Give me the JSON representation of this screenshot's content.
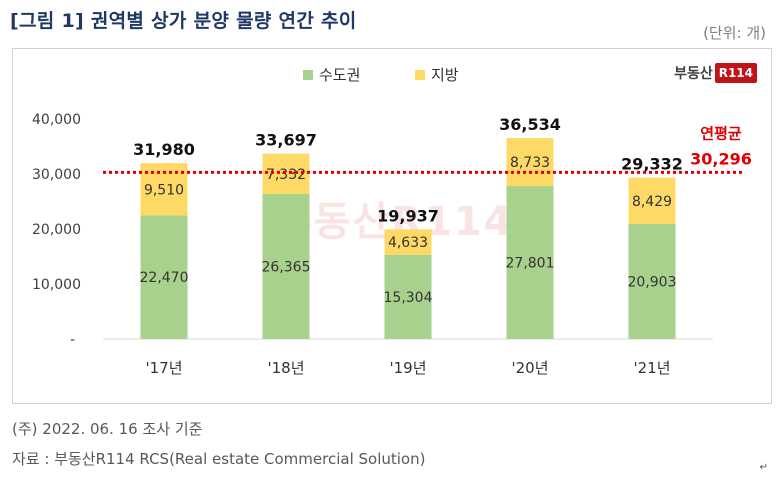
{
  "header": {
    "title": "[그림 1] 권역별 상가 분양 물량 연간 추이",
    "unit": "(단위: 개)"
  },
  "logo": {
    "text": "부동산",
    "badge": "R114"
  },
  "watermark": "부동산R114",
  "footer": {
    "note": "(주) 2022. 06. 16 조사 기준",
    "source": "자료 : 부동산R114 RCS(Real estate Commercial Solution)"
  },
  "corner_mark": "↵",
  "colors": {
    "capital": "#a9d18e",
    "regional": "#ffd966",
    "average": "#e00000",
    "title": "#1f3864"
  },
  "chart_data": {
    "type": "bar",
    "stacked": true,
    "categories": [
      "'17년",
      "'18년",
      "'19년",
      "'20년",
      "'21년"
    ],
    "series": [
      {
        "name": "수도권",
        "values": [
          22470,
          26365,
          15304,
          27801,
          20903
        ]
      },
      {
        "name": "지방",
        "values": [
          9510,
          7332,
          4633,
          8733,
          8429
        ]
      }
    ],
    "totals": [
      31980,
      33697,
      19937,
      36534,
      29332
    ],
    "value_labels": {
      "수도권": [
        "22,470",
        "26,365",
        "15,304",
        "27,801",
        "20,903"
      ],
      "지방": [
        "9,510",
        "7,332",
        "4,633",
        "8,733",
        "8,429"
      ]
    },
    "total_labels": [
      "31,980",
      "33,697",
      "19,937",
      "36,534",
      "29,332"
    ],
    "average": {
      "label": "연평균",
      "value": 30296,
      "value_label": "30,296"
    },
    "ylim": [
      0,
      40000
    ],
    "yticks": [
      0,
      10000,
      20000,
      30000,
      40000
    ],
    "ytick_labels": [
      "-",
      "10,000",
      "20,000",
      "30,000",
      "40,000"
    ],
    "legend_position": "top",
    "grid": false
  }
}
